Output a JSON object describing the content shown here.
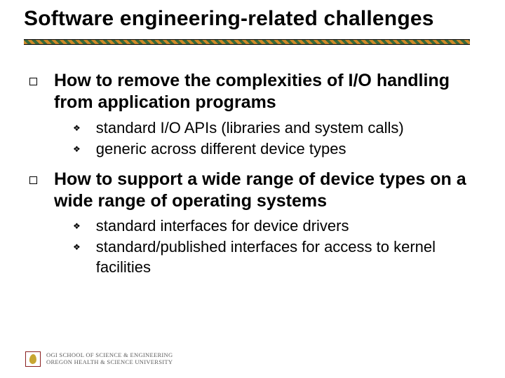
{
  "title": "Software engineering-related challenges",
  "rule": {
    "color1": "#d08a2a",
    "color2": "#3a6a3a"
  },
  "items": [
    {
      "text": "How to remove the complexities of I/O handling from application programs",
      "sub": [
        "standard I/O APIs (libraries and system calls)",
        "generic across different device types"
      ]
    },
    {
      "text": "How to support a wide range of device types on a wide range of operating systems",
      "sub": [
        "standard interfaces for device drivers",
        "standard/published interfaces for access to kernel facilities"
      ]
    }
  ],
  "footer": {
    "line1": "OGI SCHOOL OF SCIENCE & ENGINEERING",
    "line2": "OREGON HEALTH & SCIENCE UNIVERSITY"
  }
}
